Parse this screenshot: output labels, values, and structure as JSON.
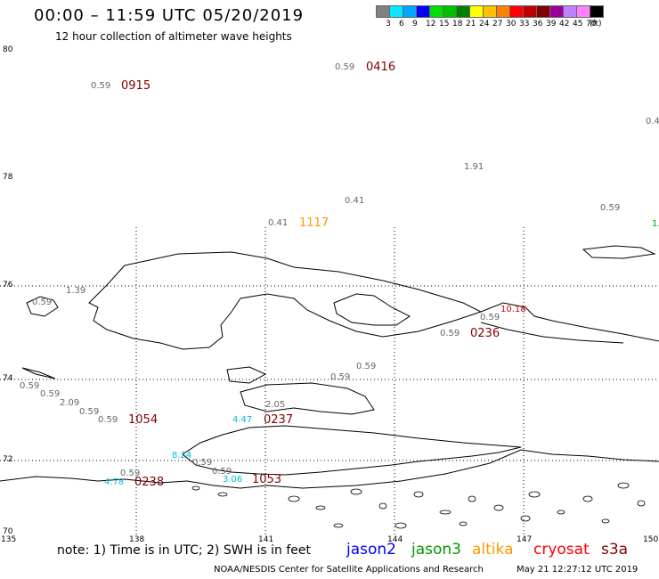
{
  "header": {
    "title": "00:00 – 11:59 UTC 05/20/2019",
    "subtitle": "12 hour collection of altimeter wave heights"
  },
  "legend": {
    "colors": [
      "#808080",
      "#00eaff",
      "#00a8ff",
      "#0000ff",
      "#00e000",
      "#00c000",
      "#008000",
      "#ffff00",
      "#ffc000",
      "#ff8000",
      "#ff0000",
      "#c00000",
      "#800000",
      "#9b009b",
      "#c080ff",
      "#ff80ff",
      "#000000"
    ],
    "labels": [
      "3",
      "6",
      "9",
      "12",
      "15",
      "18",
      "21",
      "24",
      "27",
      "30",
      "33",
      "36",
      "39",
      "42",
      "45",
      "70",
      "(ft)"
    ]
  },
  "axes": {
    "lat_labels": [
      "80",
      "78",
      "76",
      "74",
      "72",
      "70"
    ],
    "lon_labels": [
      "135",
      "138",
      "141",
      "144",
      "147",
      "150"
    ]
  },
  "observations": [
    {
      "text": "0.59",
      "color": "#666666"
    },
    {
      "text": "0416",
      "color": "#800000"
    },
    {
      "text": "0.59",
      "color": "#666666"
    },
    {
      "text": "0915",
      "color": "#800000"
    },
    {
      "text": "0.4",
      "color": "#666666"
    },
    {
      "text": "1.91",
      "color": "#666666"
    },
    {
      "text": "0.41",
      "color": "#666666"
    },
    {
      "text": "0.59",
      "color": "#666666"
    },
    {
      "text": "0.41",
      "color": "#666666"
    },
    {
      "text": "1117",
      "color": "#ff9900"
    },
    {
      "text": "1.",
      "color": "#00aa00"
    },
    {
      "text": "1.39",
      "color": "#666666"
    },
    {
      "text": "0.59",
      "color": "#666666"
    },
    {
      "text": "10.18",
      "color": "#cc0000"
    },
    {
      "text": "0.59",
      "color": "#666666"
    },
    {
      "text": "0.59",
      "color": "#666666"
    },
    {
      "text": "0236",
      "color": "#800000"
    },
    {
      "text": "0.59",
      "color": "#666666"
    },
    {
      "text": "0.59",
      "color": "#666666"
    },
    {
      "text": "0.59",
      "color": "#666666"
    },
    {
      "text": "0.59",
      "color": "#666666"
    },
    {
      "text": "2.09",
      "color": "#666666"
    },
    {
      "text": "0.59",
      "color": "#666666"
    },
    {
      "text": "0.59",
      "color": "#666666"
    },
    {
      "text": "1054",
      "color": "#800000"
    },
    {
      "text": "2.05",
      "color": "#666666"
    },
    {
      "text": "4.47",
      "color": "#00bbdd"
    },
    {
      "text": "0237",
      "color": "#800000"
    },
    {
      "text": "8.24",
      "color": "#00bbdd"
    },
    {
      "text": "0.59",
      "color": "#666666"
    },
    {
      "text": "0.59",
      "color": "#666666"
    },
    {
      "text": "0.59",
      "color": "#666666"
    },
    {
      "text": "3.06",
      "color": "#00bbdd"
    },
    {
      "text": "1053",
      "color": "#800000"
    },
    {
      "text": "0238",
      "color": "#800000"
    },
    {
      "text": "4.78",
      "color": "#00bbdd"
    }
  ],
  "footer": {
    "note": "note:  1) Time is in UTC;  2) SWH is in feet",
    "satellites": [
      {
        "name": "jason2",
        "color": "#0000ff"
      },
      {
        "name": "jason3",
        "color": "#009900"
      },
      {
        "name": "altika",
        "color": "#ff9900"
      },
      {
        "name": "cryosat",
        "color": "#ff0000"
      },
      {
        "name": "s3a",
        "color": "#800000"
      }
    ],
    "credit": "NOAA/NESDIS Center for Satellite Applications and Research",
    "timestamp": "May 21 12:27:12 UTC 2019"
  }
}
